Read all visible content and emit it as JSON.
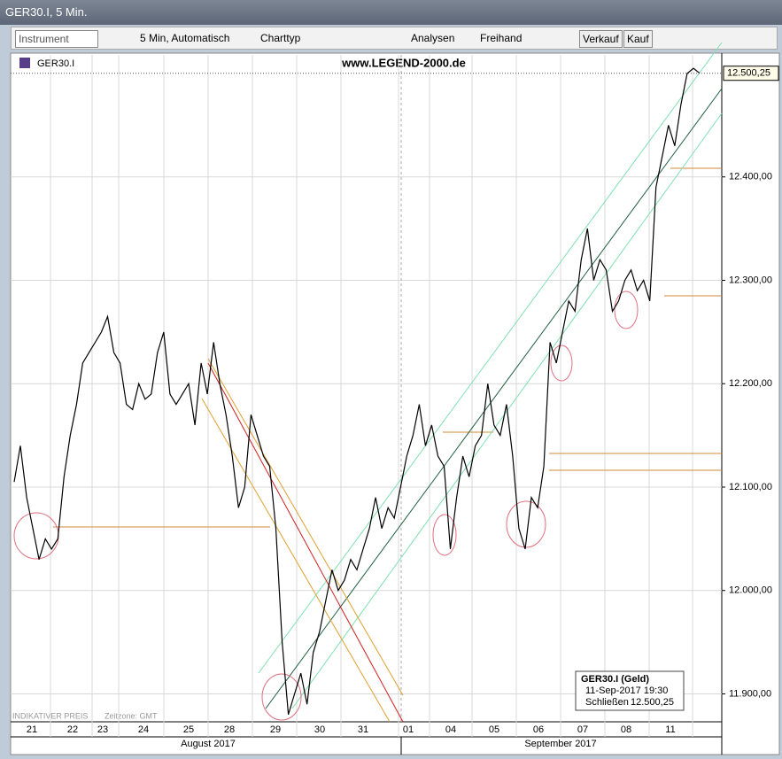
{
  "window": {
    "title": "GER30.I, 5 Min."
  },
  "toolbar": {
    "instrument": "Instrument",
    "interval": "5 Min, Automatisch",
    "charttype": "Charttyp",
    "analyses": "Analysen",
    "freehand": "Freihand",
    "sell": "Verkauf",
    "buy": "Kauf"
  },
  "chart_data": {
    "type": "line",
    "instrument": "GER30.I",
    "title": "www.LEGEND-2000.de",
    "footer": "INDIKATIVER PREIS",
    "timezone": "Zeitzone: GMT",
    "color": "#000000",
    "values": [
      12105,
      12140,
      12090,
      12060,
      12030,
      12050,
      12040,
      12050,
      12110,
      12150,
      12180,
      12220,
      12230,
      12240,
      12250,
      12265,
      12230,
      12220,
      12180,
      12175,
      12200,
      12185,
      12190,
      12230,
      12250,
      12190,
      12180,
      12190,
      12200,
      12160,
      12220,
      12190,
      12240,
      12200,
      12170,
      12130,
      12080,
      12100,
      12170,
      12150,
      12130,
      12120,
      12060,
      11950,
      11880,
      11900,
      11920,
      11890,
      11940,
      11960,
      11990,
      12020,
      12000,
      12010,
      12030,
      12020,
      12040,
      12060,
      12090,
      12060,
      12080,
      12070,
      12100,
      12130,
      12150,
      12180,
      12140,
      12160,
      12130,
      12120,
      12040,
      12090,
      12130,
      12110,
      12140,
      12150,
      12200,
      12160,
      12150,
      12180,
      12130,
      12060,
      12040,
      12090,
      12080,
      12120,
      12240,
      12220,
      12250,
      12280,
      12270,
      12320,
      12350,
      12300,
      12320,
      12310,
      12270,
      12280,
      12300,
      12310,
      12290,
      12300,
      12280,
      12390,
      12420,
      12450,
      12430,
      12470,
      12500,
      12505,
      12500.25
    ],
    "ylim": [
      11873,
      12518
    ],
    "yticks": [
      {
        "value": 11900,
        "label": "11.900,00"
      },
      {
        "value": 12000,
        "label": "12.000,00"
      },
      {
        "value": 12100,
        "label": "12.100,00"
      },
      {
        "value": 12200,
        "label": "12.200,00"
      },
      {
        "value": 12300,
        "label": "12.300,00"
      },
      {
        "value": 12400,
        "label": "12.400,00"
      }
    ],
    "last_price": {
      "value": 12500.25,
      "label": "12.500,25"
    },
    "day_labels": [
      "21",
      "22",
      "23",
      "24",
      "25",
      "28",
      "29",
      "30",
      "31",
      "01",
      "04",
      "05",
      "06",
      "07",
      "08",
      "11"
    ],
    "months": [
      "August 2017",
      "September 2017"
    ],
    "legend": {
      "title": "GER30.I (Geld)",
      "time": "11-Sep-2017 19:30",
      "close_label": "Schließen",
      "close": "12.500,25"
    },
    "grid": true
  }
}
